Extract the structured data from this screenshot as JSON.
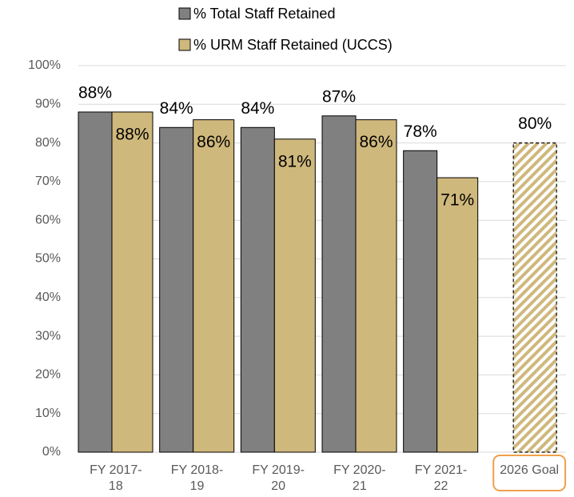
{
  "chart_data": {
    "type": "bar",
    "categories": [
      "FY 2017-18",
      "FY 2018-19",
      "FY 2019-20",
      "FY 2020-21",
      "FY 2021-22",
      "2026 Goal"
    ],
    "series": [
      {
        "name": "% Total Staff Retained",
        "color": "#808080",
        "values": [
          88,
          84,
          84,
          87,
          78,
          null
        ],
        "value_labels": [
          "88%",
          "84%",
          "84%",
          "87%",
          "78%",
          null
        ]
      },
      {
        "name": "% URM Staff Retained (UCCS)",
        "color": "#cfb87c",
        "values": [
          88,
          86,
          81,
          86,
          71,
          null
        ],
        "value_labels": [
          "88%",
          "86%",
          "81%",
          "86%",
          "71%",
          null
        ]
      }
    ],
    "goal": {
      "color": "#cfb87c",
      "values": [
        null,
        null,
        null,
        null,
        null,
        80
      ],
      "value_labels": [
        null,
        null,
        null,
        null,
        null,
        "80%"
      ]
    },
    "ylim": [
      0,
      100
    ],
    "yticks": [
      {
        "value": 0,
        "label": "0%"
      },
      {
        "value": 10,
        "label": "10%"
      },
      {
        "value": 20,
        "label": "20%"
      },
      {
        "value": 30,
        "label": "30%"
      },
      {
        "value": 40,
        "label": "40%"
      },
      {
        "value": 50,
        "label": "50%"
      },
      {
        "value": 60,
        "label": "60%"
      },
      {
        "value": 70,
        "label": "70%"
      },
      {
        "value": 80,
        "label": "80%"
      },
      {
        "value": 90,
        "label": "90%"
      },
      {
        "value": 100,
        "label": "100%"
      }
    ],
    "grid": true,
    "legend": "top"
  }
}
